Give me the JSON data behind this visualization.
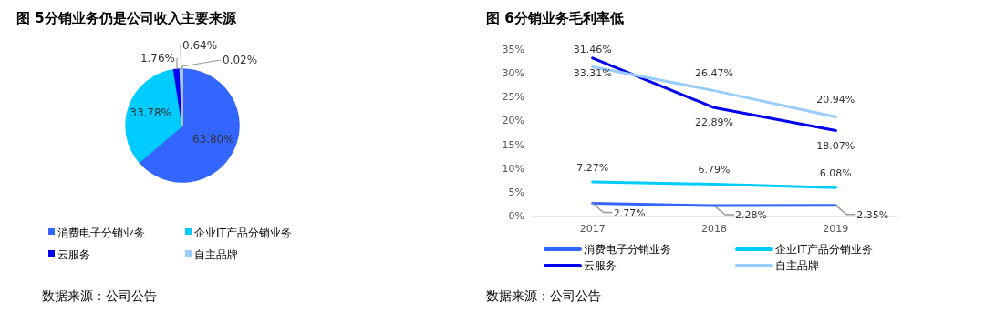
{
  "chart_data": [
    {
      "type": "pie",
      "title": "图 5分销业务仍是公司收入主要来源",
      "categories": [
        "消费电子分销业务",
        "企业IT产品分销业务",
        "云服务",
        "自主品牌",
        null
      ],
      "values": [
        63.8,
        33.78,
        1.76,
        0.64,
        0.02
      ],
      "colors": [
        "#3366ff",
        "#00ccff",
        "#0000ee",
        "#99ccff",
        "#c0c0c0"
      ],
      "value_labels": [
        "63.80%",
        "33.78%",
        "1.76%",
        "0.64%",
        "0.02%"
      ],
      "legend": "bottom",
      "annotations": [
        "数据来源：公司公告"
      ]
    },
    {
      "type": "line",
      "title": "图 6分销业务毛利率低",
      "categories": [
        "2017",
        "2018",
        "2019"
      ],
      "series": [
        {
          "name": "消费电子分销业务",
          "color": "#3366ff",
          "values": [
            2.77,
            2.28,
            2.35
          ],
          "value_labels": [
            "2.77%",
            "2.28%",
            "2.35%"
          ]
        },
        {
          "name": "企业IT产品分销业务",
          "color": "#00ccff",
          "values": [
            7.27,
            6.79,
            6.08
          ],
          "value_labels": [
            "7.27%",
            "6.79%",
            "6.08%"
          ]
        },
        {
          "name": "云服务",
          "color": "#0000ee",
          "values": [
            33.31,
            22.89,
            18.07
          ],
          "value_labels": [
            "33.31%",
            "22.89%",
            "18.07%"
          ]
        },
        {
          "name": "自主品牌",
          "color": "#99ccff",
          "values": [
            31.46,
            26.47,
            20.94
          ],
          "value_labels": [
            "31.46%",
            "26.47%",
            "20.94%"
          ]
        }
      ],
      "ylim": [
        0,
        35
      ],
      "yticks": [
        {
          "value": 0,
          "label": "0%"
        },
        {
          "value": 5,
          "label": "5%"
        },
        {
          "value": 10,
          "label": "10%"
        },
        {
          "value": 15,
          "label": "15%"
        },
        {
          "value": 20,
          "label": "20%"
        },
        {
          "value": 25,
          "label": "25%"
        },
        {
          "value": 30,
          "label": "30%"
        },
        {
          "value": 35,
          "label": "35%"
        }
      ],
      "grid": false,
      "legend": "bottom",
      "marker": "none",
      "line_style": "solid",
      "annotations": [
        "数据来源：公司公告"
      ]
    }
  ]
}
